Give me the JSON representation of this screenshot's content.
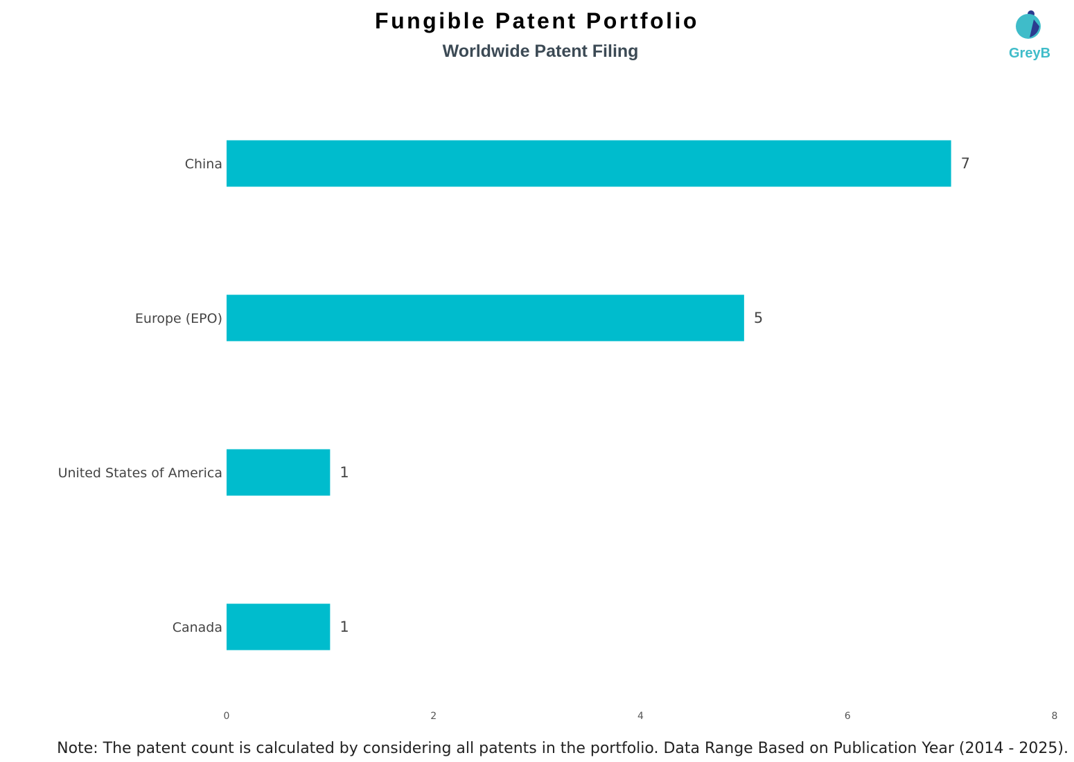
{
  "header": {
    "title": "Fungible Patent Portfolio",
    "subtitle": "Worldwide Patent Filing"
  },
  "logo": {
    "text": "GreyB",
    "colors": {
      "teal": "#3fbcc9",
      "navy": "#2b3a8f"
    }
  },
  "chart_data": {
    "type": "bar",
    "orientation": "horizontal",
    "categories": [
      "China",
      "Europe (EPO)",
      "United States of America",
      "Canada"
    ],
    "values": [
      7,
      5,
      1,
      1
    ],
    "xlim": [
      0,
      8
    ],
    "xticks": [
      0,
      2,
      4,
      6,
      8
    ],
    "bar_color": "#00bccd",
    "grid": false,
    "data_labels": true
  },
  "footer": {
    "note": "Note: The patent count is calculated by considering all patents in the portfolio. Data Range Based on Publication Year (2014 - 2025)."
  }
}
